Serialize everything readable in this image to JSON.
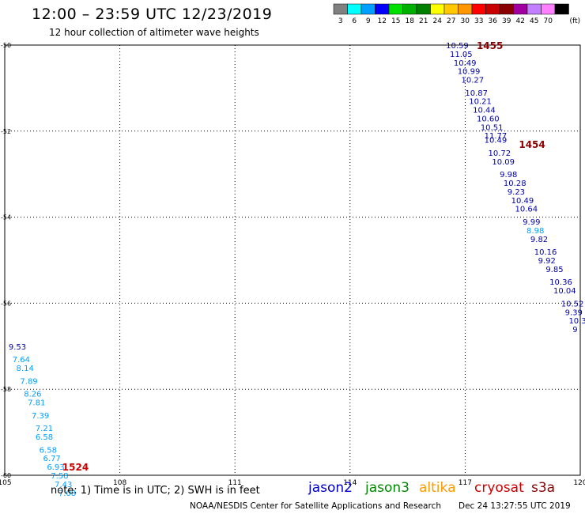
{
  "header": {
    "title": "12:00 – 23:59 UTC 12/23/2019",
    "subtitle": "12 hour collection of altimeter wave heights"
  },
  "color_scale": {
    "unit": "(ft)",
    "bins": [
      {
        "label": "3",
        "color": "#808080"
      },
      {
        "label": "6",
        "color": "#00ffff"
      },
      {
        "label": "9",
        "color": "#00a0ff"
      },
      {
        "label": "12",
        "color": "#0000ff"
      },
      {
        "label": "15",
        "color": "#00e000"
      },
      {
        "label": "18",
        "color": "#00b000"
      },
      {
        "label": "21",
        "color": "#008000"
      },
      {
        "label": "24",
        "color": "#ffff00"
      },
      {
        "label": "27",
        "color": "#ffc800"
      },
      {
        "label": "30",
        "color": "#ff9600"
      },
      {
        "label": "33",
        "color": "#ff0000"
      },
      {
        "label": "36",
        "color": "#c80000"
      },
      {
        "label": "39",
        "color": "#8b0000"
      },
      {
        "label": "42",
        "color": "#a000a0"
      },
      {
        "label": "45",
        "color": "#c080ff"
      },
      {
        "label": "70",
        "color": "#ff80ff"
      },
      {
        "label": "",
        "color": "#000000"
      }
    ]
  },
  "footer": {
    "note": "note: 1) Time is in UTC; 2) SWH is in feet",
    "credit": "NOAA/NESDIS Center for Satellite Applications and Research",
    "timestamp": "Dec 24 13:27:55 UTC 2019",
    "satellites": [
      {
        "name": "jason2",
        "color": "#0000cc"
      },
      {
        "name": "jason3",
        "color": "#008800"
      },
      {
        "name": "altika",
        "color": "#ff9900"
      },
      {
        "name": "cryosat",
        "color": "#cc0000"
      },
      {
        "name": "s3a",
        "color": "#880000"
      }
    ]
  },
  "chart_data": {
    "type": "scatter",
    "grid": true,
    "xlim": [
      105,
      120
    ],
    "ylim": [
      -60,
      -50
    ],
    "x_ticks": [
      "105",
      "108",
      "111",
      "114",
      "117",
      "120"
    ],
    "y_ticks": [
      "-50",
      "-52",
      "-54",
      "-56",
      "-58",
      "-60"
    ],
    "track_labels": [
      {
        "text": "1455",
        "lon": 117.3,
        "lat": -50.0,
        "color": "#880000"
      },
      {
        "text": "1454",
        "lon": 118.4,
        "lat": -52.3,
        "color": "#880000"
      },
      {
        "text": "1524",
        "lon": 106.5,
        "lat": -59.8,
        "color": "#cc0000"
      }
    ],
    "series": [
      {
        "name": "1455 / 1454",
        "points": [
          {
            "lon": 116.5,
            "lat": -50.0,
            "swh": "10.59",
            "color": "#0000aa"
          },
          {
            "lon": 116.6,
            "lat": -50.2,
            "swh": "11.05",
            "color": "#0000aa"
          },
          {
            "lon": 116.7,
            "lat": -50.4,
            "swh": "10.49",
            "color": "#0000aa"
          },
          {
            "lon": 116.8,
            "lat": -50.6,
            "swh": "10.99",
            "color": "#0000aa"
          },
          {
            "lon": 116.9,
            "lat": -50.8,
            "swh": "10.27",
            "color": "#0000aa"
          },
          {
            "lon": 117.0,
            "lat": -51.1,
            "swh": "10.87",
            "color": "#0000aa"
          },
          {
            "lon": 117.1,
            "lat": -51.3,
            "swh": "10.21",
            "color": "#0000aa"
          },
          {
            "lon": 117.2,
            "lat": -51.5,
            "swh": "10.44",
            "color": "#0000aa"
          },
          {
            "lon": 117.3,
            "lat": -51.7,
            "swh": "10.60",
            "color": "#0000aa"
          },
          {
            "lon": 117.4,
            "lat": -51.9,
            "swh": "10.51",
            "color": "#0000aa"
          },
          {
            "lon": 117.5,
            "lat": -52.1,
            "swh": "11.77",
            "color": "#0000aa"
          },
          {
            "lon": 117.5,
            "lat": -52.2,
            "swh": "10.49",
            "color": "#0000aa"
          },
          {
            "lon": 117.6,
            "lat": -52.5,
            "swh": "10.72",
            "color": "#0000aa"
          },
          {
            "lon": 117.7,
            "lat": -52.7,
            "swh": "10.09",
            "color": "#0000aa"
          },
          {
            "lon": 117.9,
            "lat": -53.0,
            "swh": "9.98",
            "color": "#0000aa"
          },
          {
            "lon": 118.0,
            "lat": -53.2,
            "swh": "10.28",
            "color": "#0000aa"
          },
          {
            "lon": 118.1,
            "lat": -53.4,
            "swh": "9.23",
            "color": "#0000aa"
          },
          {
            "lon": 118.2,
            "lat": -53.6,
            "swh": "10.49",
            "color": "#0000aa"
          },
          {
            "lon": 118.3,
            "lat": -53.8,
            "swh": "10.64",
            "color": "#0000aa"
          },
          {
            "lon": 118.5,
            "lat": -54.1,
            "swh": "9.99",
            "color": "#0000aa"
          },
          {
            "lon": 118.6,
            "lat": -54.3,
            "swh": "8.98",
            "color": "#00a0ff"
          },
          {
            "lon": 118.7,
            "lat": -54.5,
            "swh": "9.82",
            "color": "#0000aa"
          },
          {
            "lon": 118.8,
            "lat": -54.8,
            "swh": "10.16",
            "color": "#0000aa"
          },
          {
            "lon": 118.9,
            "lat": -55.0,
            "swh": "9.92",
            "color": "#0000aa"
          },
          {
            "lon": 119.1,
            "lat": -55.2,
            "swh": "9.85",
            "color": "#0000aa"
          },
          {
            "lon": 119.2,
            "lat": -55.5,
            "swh": "10.36",
            "color": "#0000aa"
          },
          {
            "lon": 119.3,
            "lat": -55.7,
            "swh": "10.04",
            "color": "#0000aa"
          },
          {
            "lon": 119.5,
            "lat": -56.0,
            "swh": "10.52",
            "color": "#0000aa"
          },
          {
            "lon": 119.6,
            "lat": -56.2,
            "swh": "9.39",
            "color": "#0000aa"
          },
          {
            "lon": 119.7,
            "lat": -56.4,
            "swh": "10.3",
            "color": "#0000aa"
          },
          {
            "lon": 119.8,
            "lat": -56.6,
            "swh": "9",
            "color": "#0000aa"
          }
        ]
      },
      {
        "name": "1524",
        "points": [
          {
            "lon": 105.1,
            "lat": -57.0,
            "swh": "9.53",
            "color": "#0000aa"
          },
          {
            "lon": 105.2,
            "lat": -57.3,
            "swh": "7.64",
            "color": "#00a0ff"
          },
          {
            "lon": 105.3,
            "lat": -57.5,
            "swh": "8.14",
            "color": "#00a0ff"
          },
          {
            "lon": 105.4,
            "lat": -57.8,
            "swh": "7.89",
            "color": "#00a0ff"
          },
          {
            "lon": 105.5,
            "lat": -58.1,
            "swh": "8.26",
            "color": "#00a0ff"
          },
          {
            "lon": 105.6,
            "lat": -58.3,
            "swh": "7.81",
            "color": "#00a0ff"
          },
          {
            "lon": 105.7,
            "lat": -58.6,
            "swh": "7.39",
            "color": "#00a0ff"
          },
          {
            "lon": 105.8,
            "lat": -58.9,
            "swh": "7.21",
            "color": "#00a0ff"
          },
          {
            "lon": 105.8,
            "lat": -59.1,
            "swh": "6.58",
            "color": "#00a0ff"
          },
          {
            "lon": 105.9,
            "lat": -59.4,
            "swh": "6.58",
            "color": "#00a0ff"
          },
          {
            "lon": 106.0,
            "lat": -59.6,
            "swh": "6.77",
            "color": "#00a0ff"
          },
          {
            "lon": 106.1,
            "lat": -59.8,
            "swh": "6.93",
            "color": "#00a0ff"
          },
          {
            "lon": 106.2,
            "lat": -60.0,
            "swh": "7.58",
            "color": "#00a0ff"
          },
          {
            "lon": 106.3,
            "lat": -60.2,
            "swh": "7.43",
            "color": "#00a0ff"
          },
          {
            "lon": 106.4,
            "lat": -60.4,
            "swh": "7.08",
            "color": "#00a0ff"
          }
        ]
      }
    ]
  }
}
